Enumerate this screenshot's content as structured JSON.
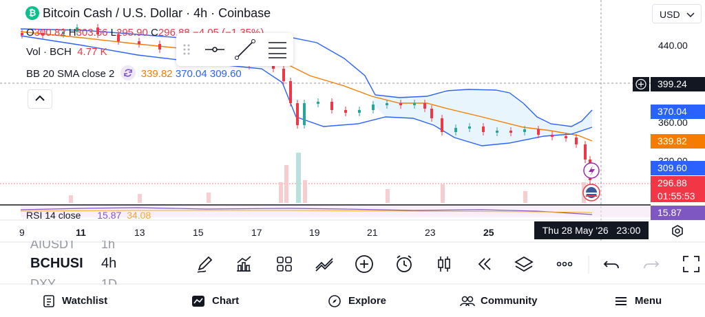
{
  "header": {
    "title": "Bitcoin Cash / U.S. Dollar · 4h · Coinbase",
    "logo_icon": "bitcoin-cash-logo-icon",
    "logo_glyph": "₿",
    "ohlc": {
      "o_label": "O",
      "o_value": "300.82",
      "h_label": "H",
      "h_value": "303.66",
      "l_label": "L",
      "l_value": "295.90",
      "c_label": "C",
      "c_value": "296.88",
      "change": "−4.05 (−1.35%)"
    },
    "volume": {
      "label": "Vol · BCH",
      "value": "4.77 K"
    },
    "bb": {
      "label": "BB 20 SMA close 2",
      "basis": "339.82",
      "upper": "370.04",
      "lower": "309.60"
    }
  },
  "currency": "USD",
  "price_axis": {
    "ticks": [
      "440.00",
      "360.00",
      "320.00"
    ],
    "crosshair_price": "399.24",
    "labels": {
      "bb_upper": "370.04",
      "bb_basis": "339.82",
      "bb_lower": "309.60",
      "last": "296.88",
      "countdown": "01:55:53",
      "rsi": "15.87"
    }
  },
  "time_axis": {
    "ticks": [
      "9",
      "11",
      "13",
      "15",
      "17",
      "19",
      "21",
      "23",
      "25"
    ],
    "crosshair_date": "Thu 28 May '26",
    "crosshair_time": "23:00"
  },
  "rsi": {
    "label": "RSI 14 close",
    "value1": "15.87",
    "value2": "34.08"
  },
  "symbols": {
    "above": "AIUSDT",
    "above_tf": "1h",
    "current": "BCHUSI",
    "current_tf": "4h",
    "below": "DXY",
    "below_tf": "1D"
  },
  "toolbar_icons": [
    "pencil-icon",
    "indicators-icon",
    "grid-icon",
    "chart-type-icon",
    "add-icon",
    "alarm-icon",
    "candles-icon",
    "replay-icon",
    "layers-icon",
    "more-icon",
    "undo-icon",
    "redo-icon",
    "fullscreen-icon"
  ],
  "bottom_nav": [
    {
      "label": "Watchlist",
      "icon": "watchlist-icon"
    },
    {
      "label": "Chart",
      "icon": "chart-icon"
    },
    {
      "label": "Explore",
      "icon": "compass-icon"
    },
    {
      "label": "Community",
      "icon": "community-icon"
    },
    {
      "label": "Menu",
      "icon": "menu-icon"
    }
  ],
  "colors": {
    "up": "#26a69a",
    "down": "#f23645",
    "bb_upper": "#2962ff",
    "bb_basis": "#f57c00",
    "bb_fill": "#e3f2fd",
    "rsi": "#7e57c2"
  }
}
